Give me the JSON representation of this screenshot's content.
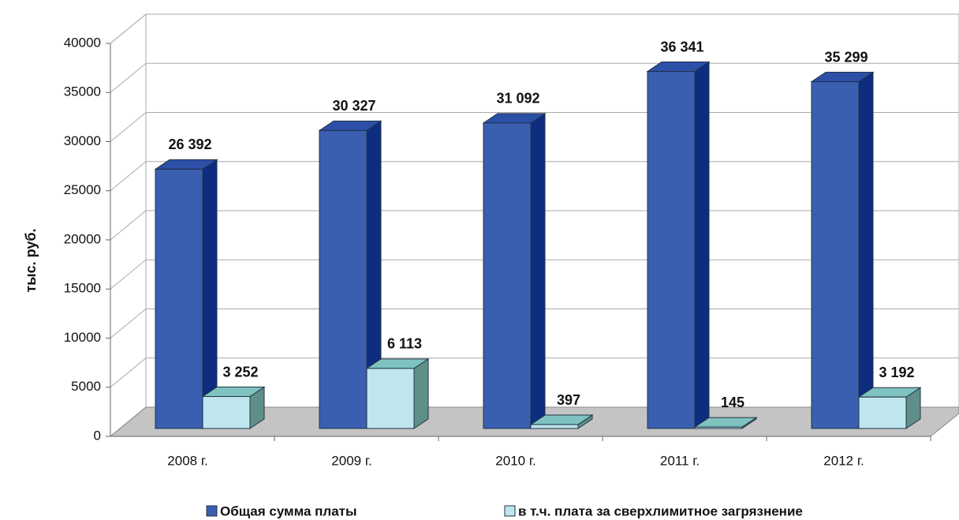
{
  "chart_data": {
    "type": "bar3d",
    "y_label": "тыс. руб.",
    "categories": [
      "2008 г.",
      "2009 г.",
      "2010 г.",
      "2011 г.",
      "2012 г."
    ],
    "series": [
      {
        "name": "Общая сумма платы",
        "color": "#3a5fb0",
        "values": [
          26392,
          30327,
          31092,
          36341,
          35299
        ],
        "value_labels": [
          "26 392",
          "30 327",
          "31 092",
          "36 341",
          "35 299"
        ]
      },
      {
        "name": "в т.ч. плата за сверхлимитное загрязнение",
        "color": "#bfe6ee",
        "values": [
          3252,
          6113,
          397,
          145,
          3192
        ],
        "value_labels": [
          "3 252",
          "6 113",
          "397",
          "145",
          "3 192"
        ]
      }
    ],
    "ylim": [
      0,
      40000
    ],
    "yticks": [
      0,
      5000,
      10000,
      15000,
      20000,
      25000,
      30000,
      35000,
      40000
    ],
    "grid": true,
    "legend": "bottom"
  }
}
